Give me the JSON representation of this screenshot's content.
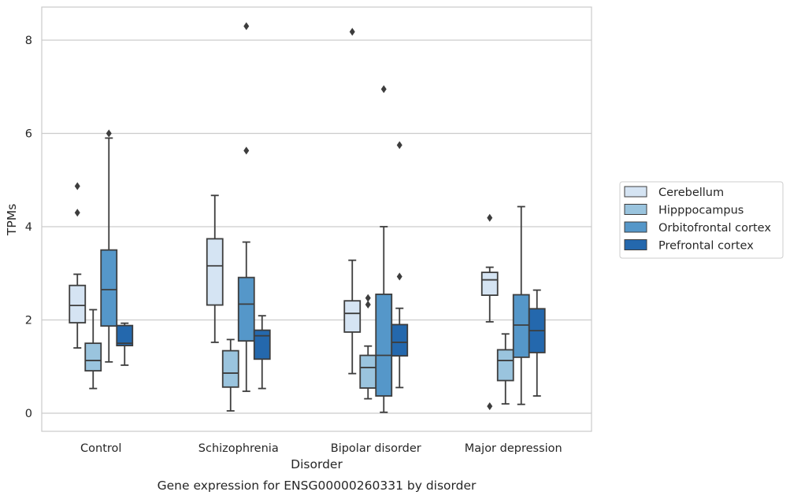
{
  "chart_data": {
    "type": "box",
    "caption": "Gene expression for ENSG00000260331 by disorder",
    "xlabel": "Disorder",
    "ylabel": "TPMs",
    "ylim": [
      -0.4,
      8.7
    ],
    "yticks": [
      "0",
      "2",
      "4",
      "6",
      "8"
    ],
    "grid": true,
    "legend_position": "right",
    "categories": [
      "Control",
      "Schizophrenia",
      "Bipolar disorder",
      "Major depression"
    ],
    "series": [
      {
        "name": "Cerebellum",
        "color": "#d5e4f3",
        "boxes": [
          {
            "whisker_low": 1.4,
            "q1": 1.94,
            "median": 2.31,
            "q3": 2.74,
            "whisker_high": 2.98,
            "outliers": [
              4.3,
              4.87
            ]
          },
          {
            "whisker_low": 1.52,
            "q1": 2.32,
            "median": 3.16,
            "q3": 3.74,
            "whisker_high": 4.67,
            "outliers": []
          },
          {
            "whisker_low": 0.85,
            "q1": 1.74,
            "median": 2.14,
            "q3": 2.41,
            "whisker_high": 3.28,
            "outliers": [
              8.18
            ]
          },
          {
            "whisker_low": 1.96,
            "q1": 2.53,
            "median": 2.86,
            "q3": 3.02,
            "whisker_high": 3.13,
            "outliers": [
              4.19,
              0.15
            ]
          }
        ]
      },
      {
        "name": "Hipppocampus",
        "color": "#9ac4de",
        "boxes": [
          {
            "whisker_low": 0.53,
            "q1": 0.91,
            "median": 1.13,
            "q3": 1.5,
            "whisker_high": 2.22,
            "outliers": []
          },
          {
            "whisker_low": 0.05,
            "q1": 0.56,
            "median": 0.86,
            "q3": 1.34,
            "whisker_high": 1.58,
            "outliers": []
          },
          {
            "whisker_low": 0.31,
            "q1": 0.54,
            "median": 0.98,
            "q3": 1.24,
            "whisker_high": 1.44,
            "outliers": [
              2.33,
              2.47
            ]
          },
          {
            "whisker_low": 0.2,
            "q1": 0.7,
            "median": 1.13,
            "q3": 1.36,
            "whisker_high": 1.7,
            "outliers": []
          }
        ]
      },
      {
        "name": "Orbitofrontal cortex",
        "color": "#5597c9",
        "boxes": [
          {
            "whisker_low": 1.1,
            "q1": 1.87,
            "median": 2.65,
            "q3": 3.5,
            "whisker_high": 5.9,
            "outliers": [
              6.0
            ]
          },
          {
            "whisker_low": 0.47,
            "q1": 1.55,
            "median": 2.34,
            "q3": 2.91,
            "whisker_high": 3.67,
            "outliers": [
              5.63,
              8.3
            ]
          },
          {
            "whisker_low": 0.02,
            "q1": 0.37,
            "median": 1.24,
            "q3": 2.55,
            "whisker_high": 4.0,
            "outliers": [
              6.95
            ]
          },
          {
            "whisker_low": 0.19,
            "q1": 1.2,
            "median": 1.89,
            "q3": 2.54,
            "whisker_high": 4.43,
            "outliers": []
          }
        ]
      },
      {
        "name": "Prefrontal cortex",
        "color": "#2468ad",
        "boxes": [
          {
            "whisker_low": 1.03,
            "q1": 1.45,
            "median": 1.5,
            "q3": 1.88,
            "whisker_high": 1.93,
            "outliers": []
          },
          {
            "whisker_low": 0.53,
            "q1": 1.16,
            "median": 1.66,
            "q3": 1.78,
            "whisker_high": 2.09,
            "outliers": []
          },
          {
            "whisker_low": 0.55,
            "q1": 1.23,
            "median": 1.52,
            "q3": 1.9,
            "whisker_high": 2.25,
            "outliers": [
              2.93,
              5.75
            ]
          },
          {
            "whisker_low": 0.37,
            "q1": 1.3,
            "median": 1.77,
            "q3": 2.24,
            "whisker_high": 2.64,
            "outliers": []
          }
        ]
      }
    ]
  }
}
